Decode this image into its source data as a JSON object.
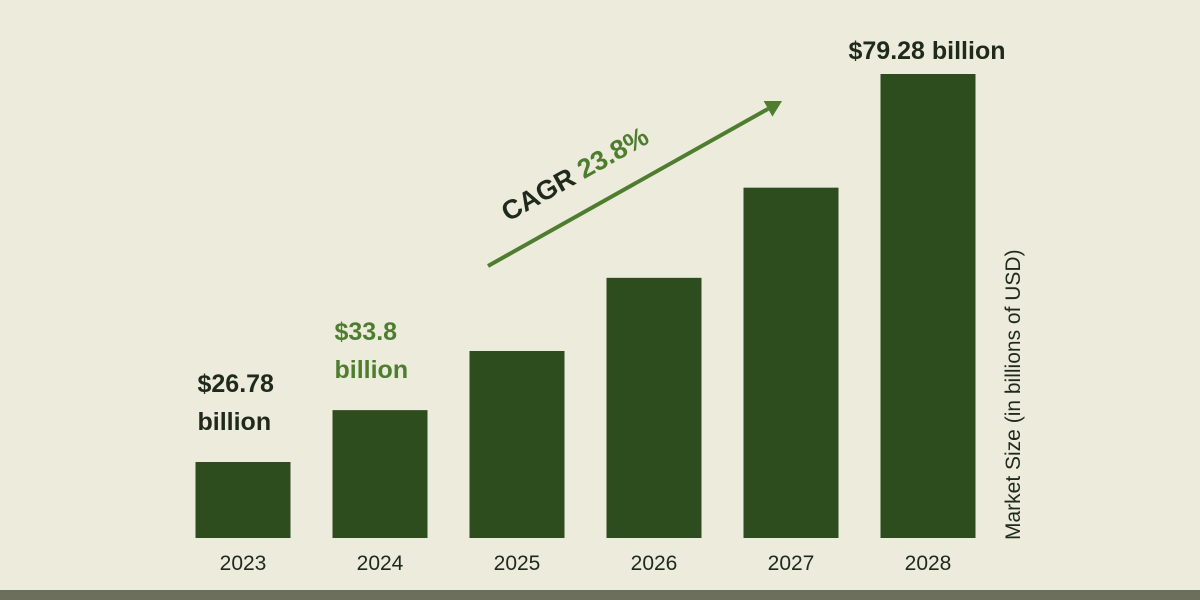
{
  "chart_data": {
    "type": "bar",
    "categories": [
      "2023",
      "2024",
      "2025",
      "2026",
      "2027",
      "2028"
    ],
    "values": [
      26.78,
      33.8,
      41.8,
      51.7,
      63.9,
      79.28
    ],
    "ylabel": "Market Size (in billions of USD)",
    "ylim": [
      0,
      80
    ],
    "grid": false,
    "data_labels": [
      {
        "category": "2023",
        "line1": "$26.78",
        "line2": "billion",
        "color": "#1f2a1b"
      },
      {
        "category": "2024",
        "line1": "$33.8",
        "line2": "billion",
        "color": "#4e7d2f"
      },
      {
        "category": "2028",
        "line1": "$79.28 billion",
        "line2": "",
        "color": "#1f2a1b"
      }
    ],
    "annotation": {
      "prefix": "CAGR",
      "value": "23.8%",
      "prefix_color": "#1f2a1b",
      "value_color": "#4e7d2f",
      "arrow_color": "#4e7d2f"
    },
    "colors": {
      "bar": "#2e4d1e",
      "background": "#ecebdc",
      "axis_text": "#1f2a1b"
    }
  }
}
